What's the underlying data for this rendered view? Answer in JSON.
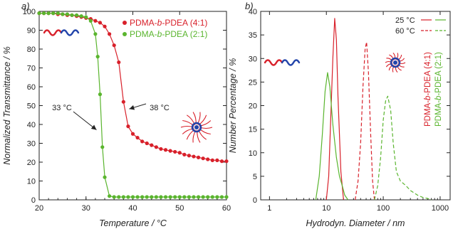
{
  "colors": {
    "red": "#d8202a",
    "green": "#5ab52e",
    "blue": "#2244aa",
    "axis": "#222222"
  },
  "chart_data": [
    {
      "panel_label": "a)",
      "type": "scatter",
      "xlabel": "Temperature / °C",
      "ylabel": "Normalized Transmittance / %",
      "xlim": [
        20,
        60
      ],
      "ylim": [
        0,
        100
      ],
      "xticks": [
        20,
        30,
        40,
        50,
        60
      ],
      "yticks": [
        0,
        10,
        20,
        30,
        40,
        50,
        60,
        70,
        80,
        90,
        100
      ],
      "legend_position": "top-right",
      "series": [
        {
          "name": "PDMA-b-PDEA (4:1)",
          "color": "#d8202a",
          "x": [
            20,
            21,
            22,
            23,
            24,
            25,
            26,
            27,
            28,
            29,
            30,
            31,
            32,
            33,
            34,
            35,
            36,
            37,
            38,
            39,
            40,
            41,
            42,
            43,
            44,
            45,
            46,
            47,
            48,
            49,
            50,
            51,
            52,
            53,
            54,
            55,
            56,
            57,
            58,
            59,
            60
          ],
          "y": [
            99,
            99,
            99,
            99,
            98.5,
            98.5,
            98,
            98,
            97.5,
            97,
            96.5,
            96,
            95,
            94,
            92,
            88,
            82,
            73,
            52,
            39,
            35,
            33,
            31,
            30,
            29,
            28,
            27,
            26.5,
            26,
            25.5,
            25,
            24,
            23.5,
            23,
            22.5,
            22,
            21.5,
            21,
            21,
            20.5,
            20.5
          ]
        },
        {
          "name": "PDMA-b-PDEA (2:1)",
          "color": "#5ab52e",
          "x": [
            20,
            21,
            22,
            23,
            24,
            25,
            26,
            27,
            28,
            29,
            30,
            31,
            32,
            32.5,
            33,
            33.5,
            34,
            35,
            36,
            37,
            38,
            39,
            40,
            41,
            42,
            43,
            44,
            45,
            46,
            47,
            48,
            49,
            50,
            51,
            52,
            53,
            54,
            55,
            56,
            57,
            58,
            59,
            60
          ],
          "y": [
            99,
            99,
            99,
            99,
            99,
            98.5,
            98.5,
            98,
            98,
            97.5,
            97,
            95,
            88,
            76,
            56,
            28,
            12,
            2,
            1.5,
            1.5,
            1.5,
            1.5,
            1.5,
            1.5,
            1.5,
            1.5,
            1.5,
            1.5,
            1.5,
            1.5,
            1.5,
            1.5,
            1.5,
            1.5,
            1.5,
            1.5,
            1.5,
            1.5,
            1.5,
            1.5,
            1.5,
            1.5,
            1.5
          ]
        }
      ],
      "annotations": [
        {
          "text": "33 °C",
          "x": 33,
          "y": 56,
          "color": "#5ab52e"
        },
        {
          "text": "38 °C",
          "x": 38,
          "y": 52,
          "color": "#d8202a"
        }
      ]
    },
    {
      "panel_label": "b)",
      "type": "line",
      "xlabel": "Hydrodyn. Diameter / nm",
      "ylabel": "Number Percentage / %",
      "xscale": "log",
      "xlim": [
        0.7,
        1500
      ],
      "ylim": [
        0,
        40
      ],
      "xticks": [
        1,
        10,
        100,
        1000
      ],
      "yticks": [
        0,
        5,
        10,
        15,
        20,
        25,
        30,
        35,
        40
      ],
      "legend_position": "top-right",
      "legend": [
        {
          "label": "25 °C",
          "style": "solid"
        },
        {
          "label": "60 °C",
          "style": "dashed"
        }
      ],
      "rotated_labels": [
        {
          "text": "PDMA-b-PDEA (4:1)",
          "color": "#d8202a"
        },
        {
          "text": "PDMA-b-PDEA (2:1)",
          "color": "#5ab52e"
        }
      ],
      "series": [
        {
          "name": "PDMA-b-PDEA (4:1)",
          "temperature": "25 °C",
          "color": "#d8202a",
          "dash": false,
          "x": [
            10,
            11,
            12,
            13,
            14,
            15,
            16,
            18,
            20
          ],
          "y": [
            0,
            5,
            18,
            30,
            38.5,
            34,
            22,
            6,
            0
          ]
        },
        {
          "name": "PDMA-b-PDEA (2:1)",
          "temperature": "25 °C",
          "color": "#5ab52e",
          "dash": false,
          "x": [
            6.5,
            7.5,
            8.5,
            9.5,
            10.5,
            11.5,
            13,
            15,
            17,
            19,
            21,
            24
          ],
          "y": [
            0,
            5,
            14,
            23,
            27,
            24,
            16,
            9,
            5,
            3,
            1,
            0
          ]
        },
        {
          "name": "PDMA-b-PDEA (4:1)",
          "temperature": "60 °C",
          "color": "#d8202a",
          "dash": true,
          "x": [
            32,
            36,
            40,
            44,
            48,
            51,
            55,
            60,
            65,
            70
          ],
          "y": [
            0,
            4,
            12,
            24,
            32,
            33.5,
            27,
            14,
            4,
            0
          ]
        },
        {
          "name": "PDMA-b-PDEA (2:1)",
          "temperature": "60 °C",
          "color": "#5ab52e",
          "dash": true,
          "x": [
            70,
            80,
            90,
            100,
            110,
            120,
            135,
            150,
            170,
            200,
            250,
            300,
            400,
            500,
            600,
            700
          ],
          "y": [
            0,
            3,
            9,
            17,
            21,
            22,
            19,
            12,
            6,
            4,
            3,
            2,
            1,
            0.5,
            0.3,
            0
          ]
        }
      ]
    }
  ]
}
